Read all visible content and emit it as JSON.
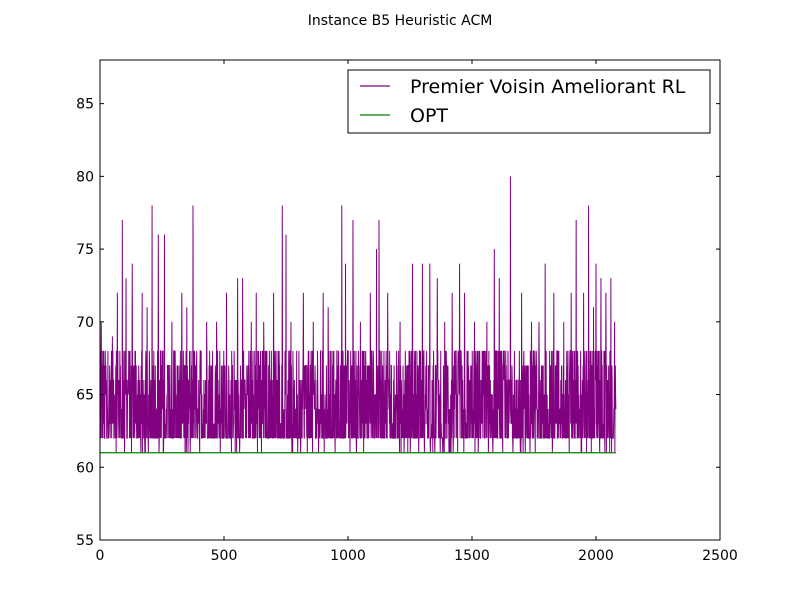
{
  "chart_data": {
    "type": "line",
    "title": "Instance B5 Heuristic ACM",
    "xlabel": "",
    "ylabel": "",
    "xlim": [
      0,
      2500
    ],
    "ylim": [
      55,
      88
    ],
    "xticks": [
      0,
      500,
      1000,
      1500,
      2000,
      2500
    ],
    "yticks": [
      55,
      60,
      65,
      70,
      75,
      80,
      85
    ],
    "grid": false,
    "legend_position": "top-right",
    "colors": {
      "rl": "#800080",
      "opt": "#008000"
    },
    "series": [
      {
        "name": "Premier Voisin Ameliorant RL",
        "color": "#800080",
        "x_range": [
          0,
          2080
        ],
        "baseline": 62,
        "typical_band": [
          62,
          68
        ],
        "spikes": [
          {
            "x": 5,
            "y": 70
          },
          {
            "x": 50,
            "y": 69
          },
          {
            "x": 70,
            "y": 72
          },
          {
            "x": 90,
            "y": 77
          },
          {
            "x": 105,
            "y": 73
          },
          {
            "x": 130,
            "y": 74
          },
          {
            "x": 170,
            "y": 72
          },
          {
            "x": 190,
            "y": 71
          },
          {
            "x": 210,
            "y": 78
          },
          {
            "x": 235,
            "y": 76
          },
          {
            "x": 260,
            "y": 76
          },
          {
            "x": 290,
            "y": 70
          },
          {
            "x": 330,
            "y": 72
          },
          {
            "x": 350,
            "y": 71
          },
          {
            "x": 375,
            "y": 78
          },
          {
            "x": 430,
            "y": 70
          },
          {
            "x": 470,
            "y": 70
          },
          {
            "x": 510,
            "y": 72
          },
          {
            "x": 555,
            "y": 73
          },
          {
            "x": 575,
            "y": 73
          },
          {
            "x": 610,
            "y": 70
          },
          {
            "x": 630,
            "y": 72
          },
          {
            "x": 660,
            "y": 70
          },
          {
            "x": 700,
            "y": 72
          },
          {
            "x": 735,
            "y": 78
          },
          {
            "x": 750,
            "y": 76
          },
          {
            "x": 770,
            "y": 70
          },
          {
            "x": 820,
            "y": 72
          },
          {
            "x": 860,
            "y": 70
          },
          {
            "x": 900,
            "y": 72
          },
          {
            "x": 920,
            "y": 71
          },
          {
            "x": 975,
            "y": 78
          },
          {
            "x": 990,
            "y": 74
          },
          {
            "x": 1020,
            "y": 77
          },
          {
            "x": 1050,
            "y": 70
          },
          {
            "x": 1090,
            "y": 72
          },
          {
            "x": 1115,
            "y": 75
          },
          {
            "x": 1125,
            "y": 77
          },
          {
            "x": 1160,
            "y": 72
          },
          {
            "x": 1210,
            "y": 70
          },
          {
            "x": 1260,
            "y": 74
          },
          {
            "x": 1300,
            "y": 74
          },
          {
            "x": 1330,
            "y": 74
          },
          {
            "x": 1360,
            "y": 73
          },
          {
            "x": 1390,
            "y": 70
          },
          {
            "x": 1420,
            "y": 72
          },
          {
            "x": 1450,
            "y": 74
          },
          {
            "x": 1470,
            "y": 72
          },
          {
            "x": 1510,
            "y": 70
          },
          {
            "x": 1560,
            "y": 70
          },
          {
            "x": 1590,
            "y": 75
          },
          {
            "x": 1610,
            "y": 73
          },
          {
            "x": 1655,
            "y": 80
          },
          {
            "x": 1700,
            "y": 72
          },
          {
            "x": 1740,
            "y": 70
          },
          {
            "x": 1770,
            "y": 70
          },
          {
            "x": 1795,
            "y": 74
          },
          {
            "x": 1830,
            "y": 72
          },
          {
            "x": 1870,
            "y": 70
          },
          {
            "x": 1900,
            "y": 72
          },
          {
            "x": 1920,
            "y": 77
          },
          {
            "x": 1950,
            "y": 72
          },
          {
            "x": 1970,
            "y": 78
          },
          {
            "x": 1990,
            "y": 71
          },
          {
            "x": 2000,
            "y": 74
          },
          {
            "x": 2020,
            "y": 73
          },
          {
            "x": 2040,
            "y": 72
          },
          {
            "x": 2060,
            "y": 73
          },
          {
            "x": 2075,
            "y": 70
          }
        ]
      },
      {
        "name": "OPT",
        "color": "#008000",
        "x": [
          0,
          2080
        ],
        "y": [
          61,
          61
        ]
      }
    ]
  }
}
